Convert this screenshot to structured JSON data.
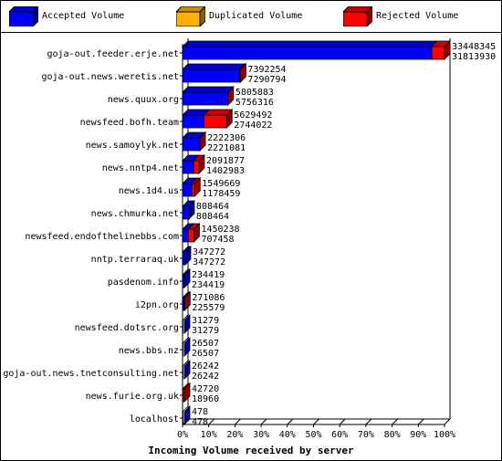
{
  "legend": [
    {
      "label": "Accepted Volume",
      "color": "#0000ff"
    },
    {
      "label": "Duplicated Volume",
      "color": "#ffb000"
    },
    {
      "label": "Rejected Volume",
      "color": "#ff0000"
    }
  ],
  "chart_data": {
    "type": "bar",
    "orientation": "horizontal",
    "stacked": true,
    "title": "",
    "xlabel": "Incoming Volume received by server",
    "ylabel": "",
    "xlim": [
      0,
      100
    ],
    "x_unit": "%",
    "x_ticks": [
      "0%",
      "10%",
      "20%",
      "30%",
      "40%",
      "50%",
      "60%",
      "70%",
      "80%",
      "90%",
      "100%"
    ],
    "categories": [
      "goja-out.feeder.erje.net",
      "goja-out.news.weretis.net",
      "news.quux.org",
      "newsfeed.bofh.team",
      "news.samoylyk.net",
      "news.nntp4.net",
      "news.1d4.us",
      "news.chmurka.net",
      "newsfeed.endofthelinebbs.com",
      "nntp.terraraq.uk",
      "pasdenom.info",
      "i2pn.org",
      "newsfeed.dotsrc.org",
      "news.bbs.nz",
      "goja-out.news.tnetconsulting.net",
      "news.furie.org.uk",
      "localhost"
    ],
    "totals": [
      "33448345",
      "7392254",
      "5805883",
      "5629492",
      "2222306",
      "2091877",
      "1549669",
      "808464",
      "1450238",
      "347272",
      "234419",
      "271086",
      "31279",
      "26507",
      "26242",
      "42720",
      "478"
    ],
    "accepted": [
      "31813930",
      "7290794",
      "5756316",
      "2744022",
      "2221081",
      "1402983",
      "1178459",
      "808464",
      "707458",
      "347272",
      "234419",
      "225579",
      "31279",
      "26507",
      "26242",
      "18960",
      "478"
    ],
    "series": [
      {
        "name": "Accepted Volume",
        "color": "#0000ff"
      },
      {
        "name": "Duplicated Volume",
        "color": "#ffb000"
      },
      {
        "name": "Rejected Volume",
        "color": "#ff0000"
      }
    ],
    "grid": false,
    "legend_position": "top"
  }
}
